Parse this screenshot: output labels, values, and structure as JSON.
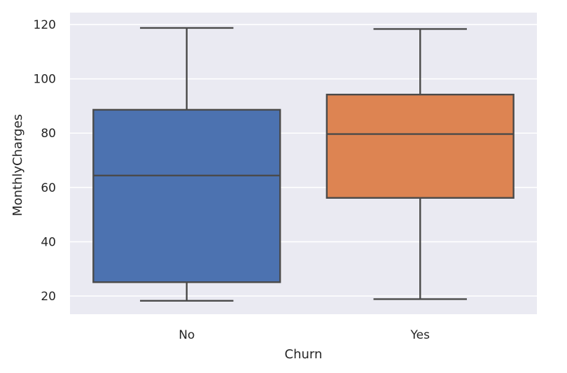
{
  "chart_data": {
    "type": "box",
    "xlabel": "Churn",
    "ylabel": "MonthlyCharges",
    "categories": [
      "No",
      "Yes"
    ],
    "ylim": [
      13.3,
      124.4
    ],
    "yticks": [
      20,
      40,
      60,
      80,
      100,
      120
    ],
    "grid": true,
    "boxes": [
      {
        "category": "No",
        "min": 18.25,
        "q1": 25.1,
        "median": 64.4,
        "q3": 88.6,
        "max": 118.75,
        "color": "#4c72b0"
      },
      {
        "category": "Yes",
        "min": 18.85,
        "q1": 56.15,
        "median": 79.65,
        "q3": 94.2,
        "max": 118.35,
        "color": "#dd8452"
      }
    ]
  }
}
